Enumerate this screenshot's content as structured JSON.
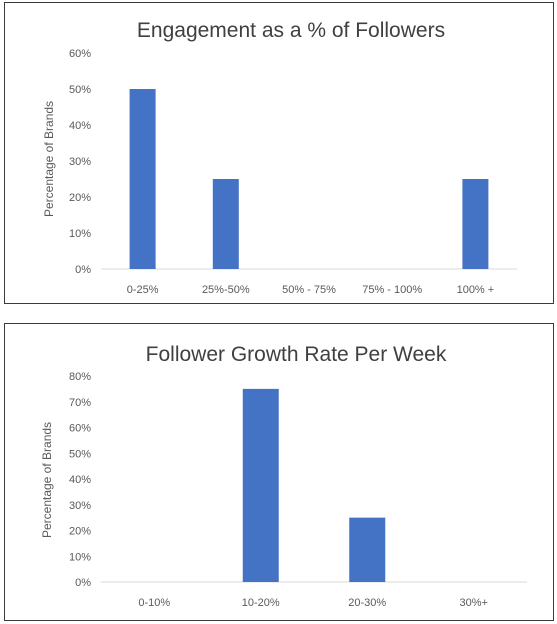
{
  "chart_data": [
    {
      "type": "bar",
      "title": "Engagement as a % of Followers",
      "xlabel": "",
      "ylabel": "Percentage of Brands",
      "categories": [
        "0-25%",
        "25%-50%",
        "50% - 75%",
        "75% - 100%",
        "100% +"
      ],
      "values": [
        50,
        25,
        0,
        0,
        25
      ],
      "ylim": [
        0,
        60
      ],
      "yticks": [
        "0%",
        "10%",
        "20%",
        "30%",
        "40%",
        "50%",
        "60%"
      ],
      "grid": false,
      "color": "#4472C4"
    },
    {
      "type": "bar",
      "title": "Follower Growth Rate Per Week",
      "xlabel": "",
      "ylabel": "Percentage of Brands",
      "categories": [
        "0-10%",
        "10-20%",
        "20-30%",
        "30%+"
      ],
      "values": [
        0,
        75,
        25,
        0
      ],
      "ylim": [
        0,
        80
      ],
      "yticks": [
        "0%",
        "10%",
        "20%",
        "30%",
        "40%",
        "50%",
        "60%",
        "70%",
        "80%"
      ],
      "grid": false,
      "color": "#4472C4"
    }
  ]
}
